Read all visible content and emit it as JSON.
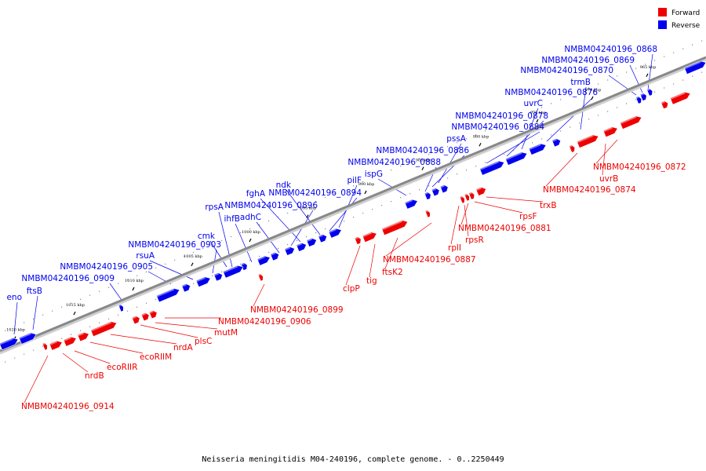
{
  "caption": "Neisseria meningitidis M04-240196, complete genome. - 0..2250449",
  "legend": [
    {
      "label": "Forward",
      "color": "#ee0000"
    },
    {
      "label": "Reverse",
      "color": "#0000ee"
    }
  ],
  "colors": {
    "forward": "#ee0000",
    "reverse": "#0000ee",
    "axis": "#888888"
  },
  "ticks": [
    "965 kbp",
    "970 kbp",
    "975 kbp",
    "980 kbp",
    "985 kbp",
    "990 kbp",
    "995 kbp",
    "1000 kbp",
    "1005 kbp",
    "1010 kbp",
    "1015 kbp",
    "1020 kbp"
  ],
  "reverse_genes": [
    "NMBM04240196_0868",
    "NMBM04240196_0869",
    "NMBM04240196_0870",
    "trmB",
    "NMBM04240196_0876",
    "uvrC",
    "NMBM04240196_0878",
    "NMBM04240196_0884",
    "pssA",
    "NMBM04240196_0886",
    "NMBM04240196_0888",
    "ispG",
    "pilF",
    "NMBM04240196_0894",
    "ndk",
    "fghA",
    "NMBM04240196_0896",
    "adhC",
    "ihfB",
    "rpsA",
    "cmk",
    "NMBM04240196_0903",
    "rsuA",
    "NMBM04240196_0905",
    "NMBM04240196_0909",
    "ftsB",
    "eno"
  ],
  "forward_genes": [
    "NMBM04240196_0872",
    "uvrB",
    "NMBM04240196_0874",
    "trxB",
    "rpsF",
    "NMBM04240196_0881",
    "rpsR",
    "rplI",
    "NMBM04240196_0887",
    "ftsK2",
    "tig",
    "clpP",
    "NMBM04240196_0899",
    "NMBM04240196_0906",
    "mutM",
    "plsC",
    "nrdA",
    "ecoRIIM",
    "ecoRIIR",
    "nrdB",
    "NMBM04240196_0914"
  ]
}
